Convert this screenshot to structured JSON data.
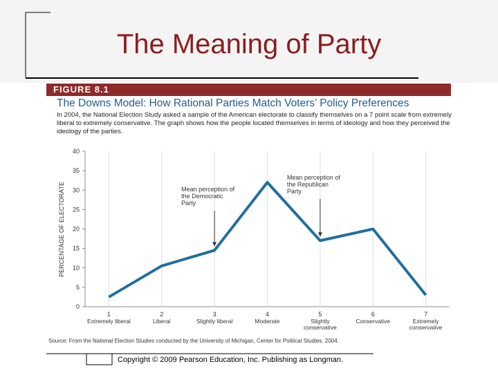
{
  "slide_title": "The Meaning of Party",
  "figure_label": "FIGURE 8.1",
  "chart_data": {
    "type": "line",
    "title": "The Downs Model: How Rational Parties Match Voters’ Policy Preferences",
    "description": "In 2004, the National Election Study asked a sample of the American electorate to classify themselves on a 7 point scale from extremely liberal to extremely conservative. The graph shows how the people located themselves in terms of ideology and how they perceived the ideology of the parties.",
    "y_label": "PERCENTAGE OF ELECTORATE",
    "x": [
      1,
      2,
      3,
      4,
      5,
      6,
      7
    ],
    "x_descriptions": [
      "Extremely liberal",
      "Liberal",
      "Slightly liberal",
      "Moderate",
      "Slightly conservative",
      "Conservative",
      "Extremely conservative"
    ],
    "values": [
      2.5,
      10.5,
      14.5,
      32,
      17,
      20,
      3
    ],
    "color": "#1f6fa0",
    "xlim": [
      0.55,
      7.45
    ],
    "xticks": [
      1,
      2,
      3,
      4,
      5,
      6,
      7
    ],
    "ylim": [
      0,
      40
    ],
    "yticks": [
      0,
      5,
      10,
      15,
      20,
      25,
      30,
      35,
      40
    ],
    "grid": "x",
    "annotations": [
      {
        "text": "Mean perception of the Democratic Party",
        "x": 3
      },
      {
        "text": "Mean perception of the Republican Party",
        "x": 5
      }
    ],
    "source": "Source: From the National Election Studies conducted by the University of Michigan, Center for Political Studies, 2004."
  },
  "copyright": "Copyright © 2009 Pearson Education, Inc. Publishing as Longman."
}
